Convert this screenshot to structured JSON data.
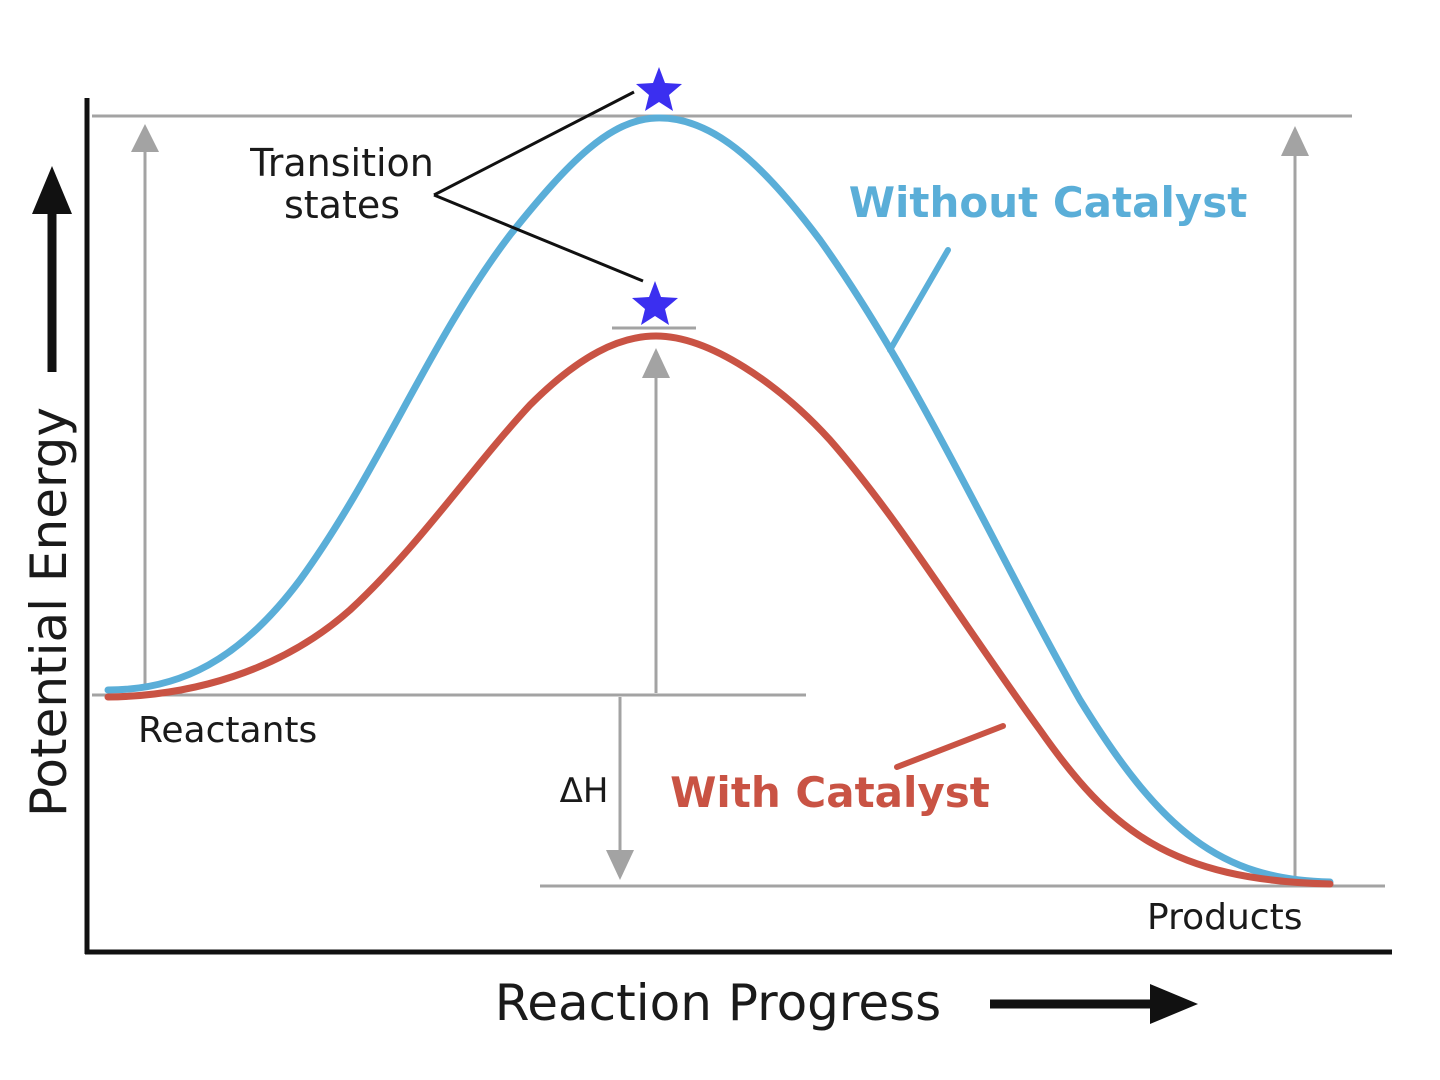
{
  "diagram": {
    "axes": {
      "x_label": "Reaction Progress",
      "y_label": "Potential Energy"
    },
    "labels": {
      "reactants": "Reactants",
      "products": "Products",
      "delta_h": "ΔH",
      "transition_line1": "Transition",
      "transition_line2": "states"
    },
    "curves": {
      "without_catalyst": {
        "label": "Without Catalyst",
        "color": "#5aaed8"
      },
      "with_catalyst": {
        "label": "With Catalyst",
        "color": "#c95344"
      }
    },
    "colors": {
      "star": "#3b2ff0",
      "guide": "#a3a3a3",
      "axis": "#111111"
    }
  }
}
